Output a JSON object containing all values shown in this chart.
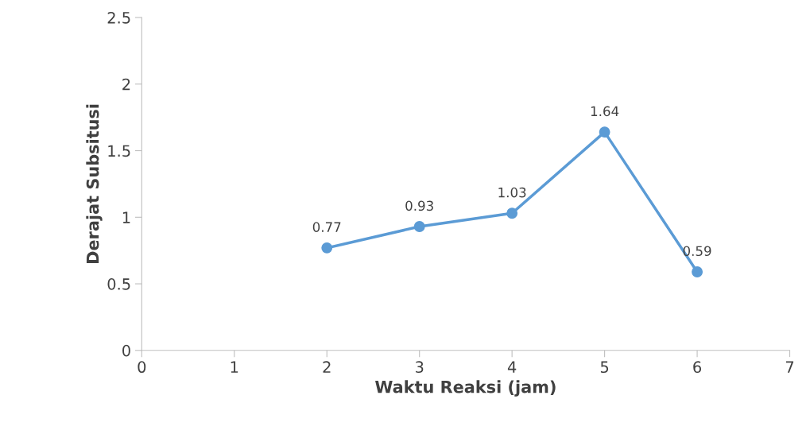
{
  "chart_data": {
    "type": "line",
    "xlabel": "Waktu Reaksi (jam)",
    "ylabel": "Derajat Subsitusi",
    "x": [
      2,
      3,
      4,
      5,
      6
    ],
    "series": [
      {
        "color": "#5b9bd5",
        "values": [
          0.77,
          0.93,
          1.03,
          1.64,
          0.59
        ]
      }
    ],
    "xlim": [
      0,
      7
    ],
    "xticks": [
      0,
      1,
      2,
      3,
      4,
      5,
      6,
      7
    ],
    "ylim": [
      0,
      2.5
    ],
    "yticks": [
      0,
      0.5,
      1,
      1.5,
      2,
      2.5
    ],
    "marker": "circle",
    "line_style": "solid",
    "data_labels": true,
    "grid": false,
    "legend": false
  }
}
